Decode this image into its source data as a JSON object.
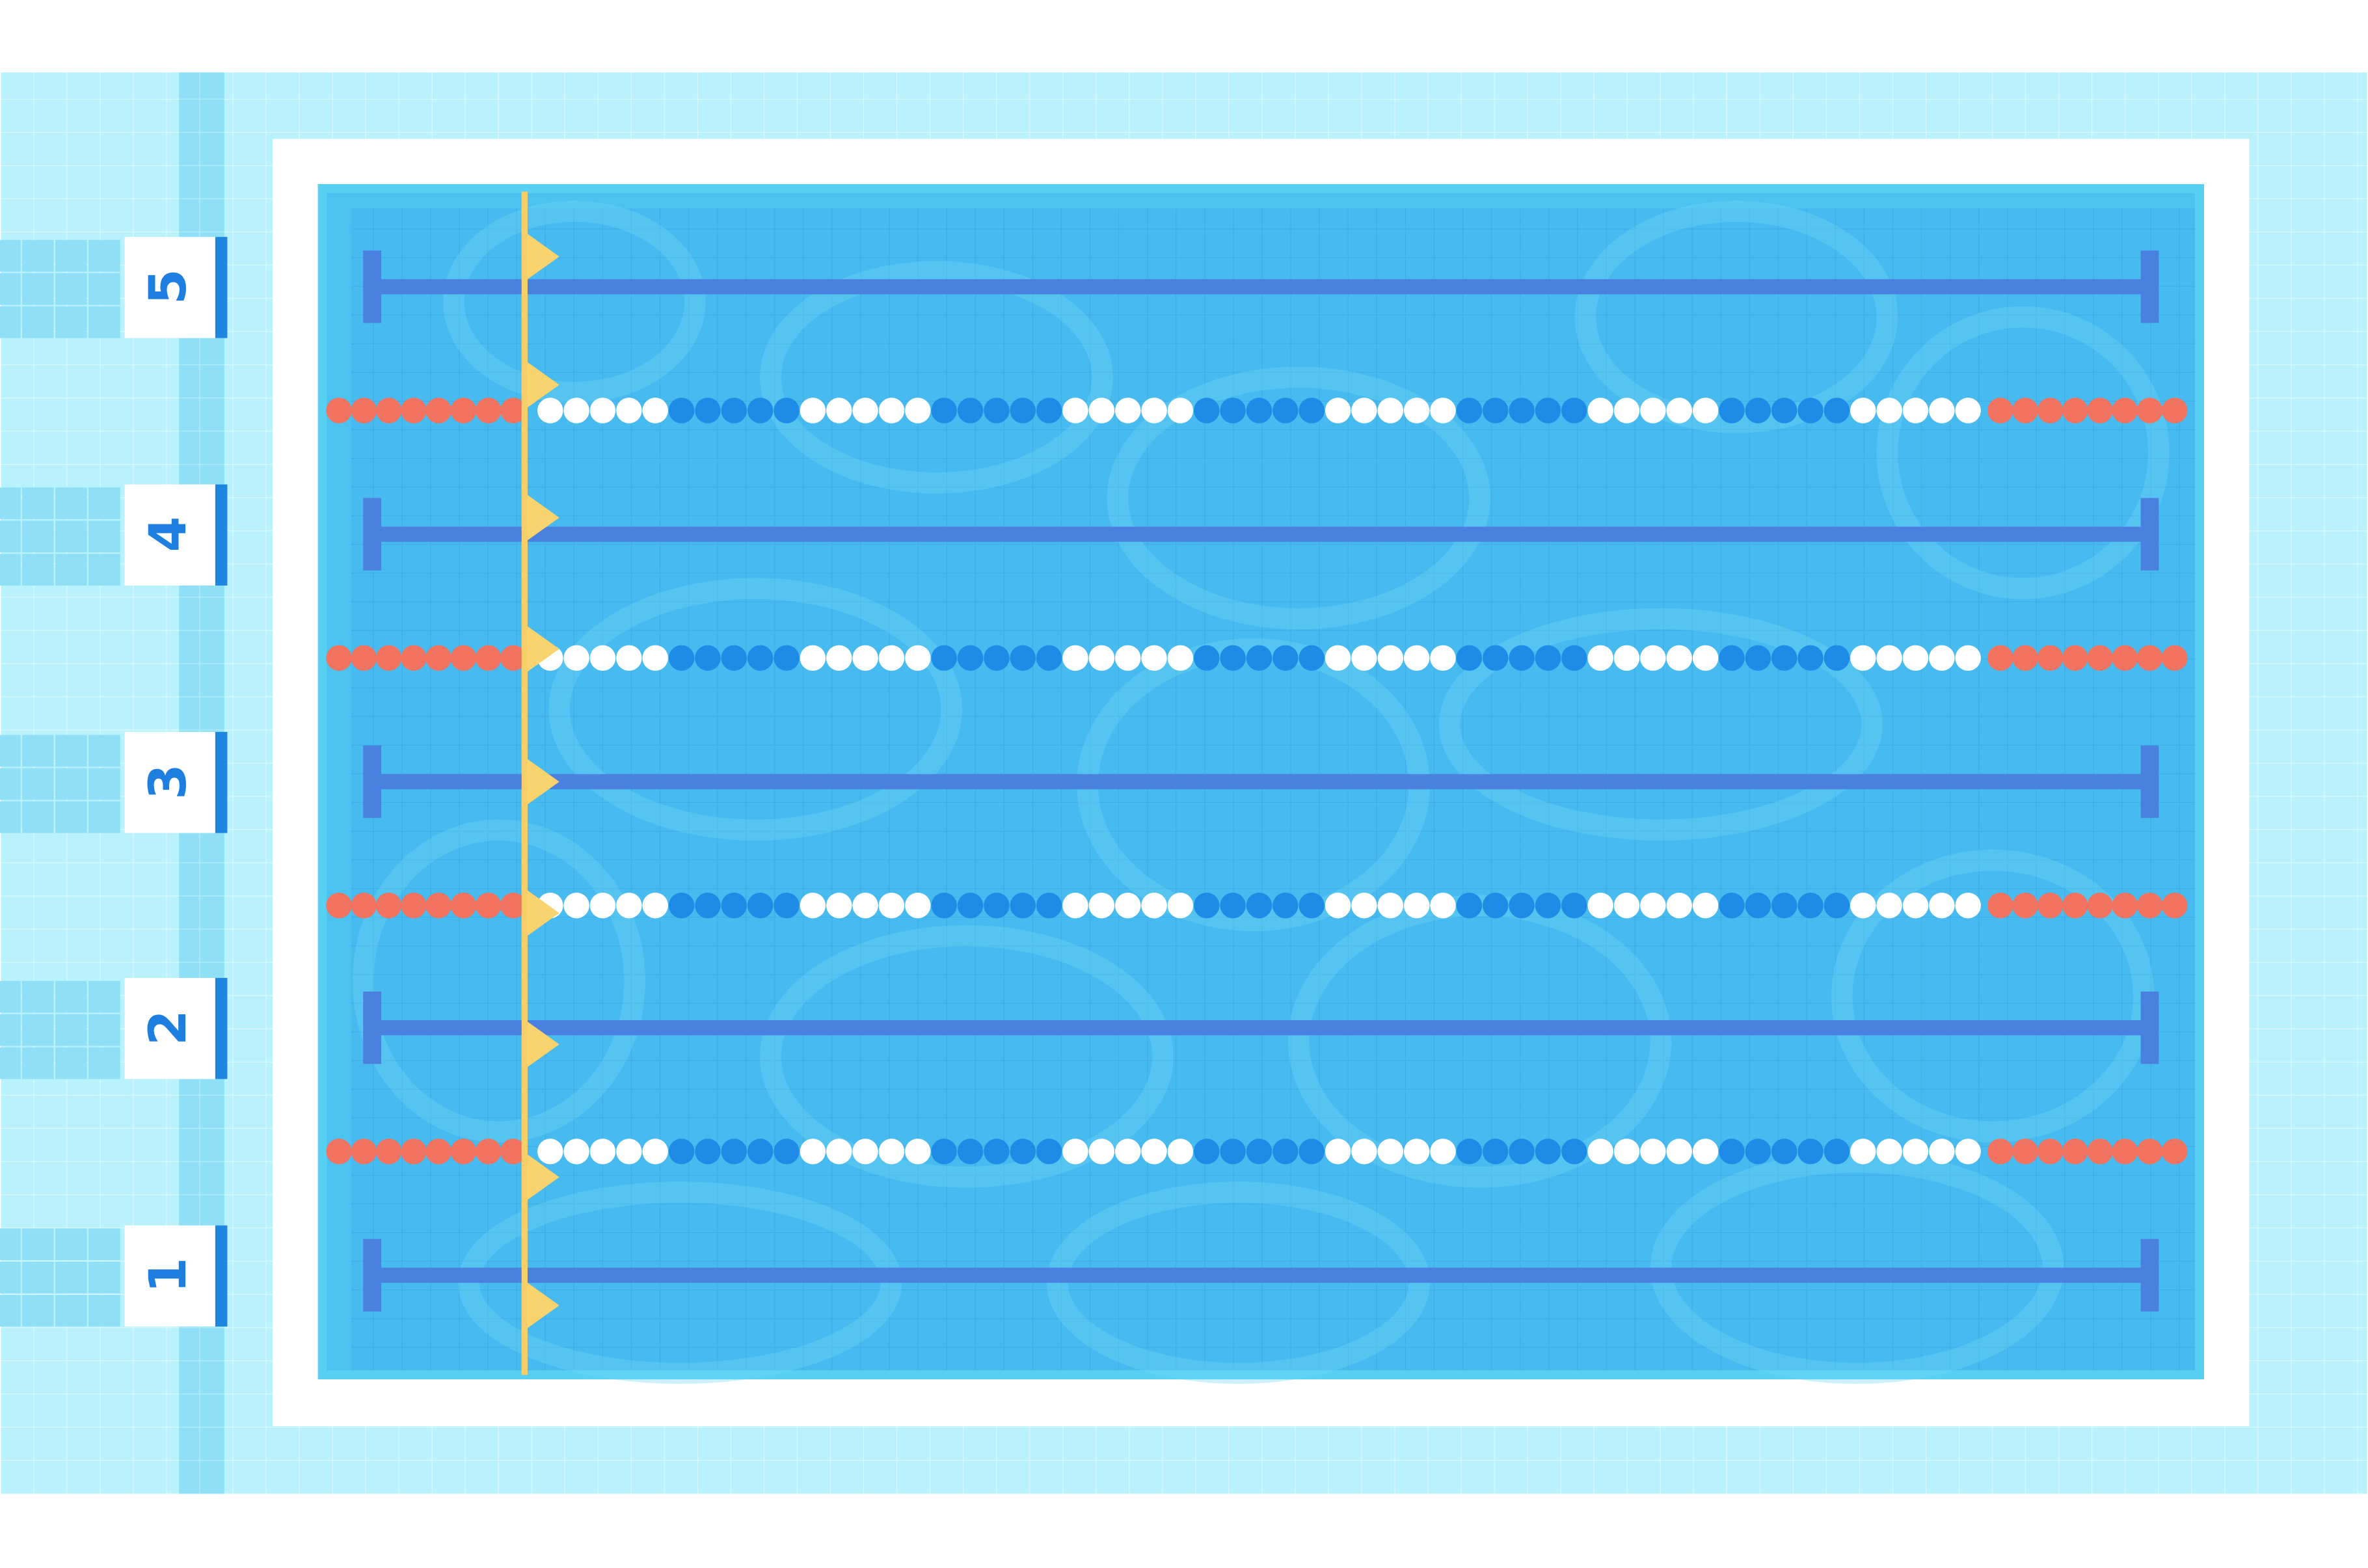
{
  "lane_numbers": [
    "5",
    "4",
    "3",
    "2",
    "1"
  ]
}
